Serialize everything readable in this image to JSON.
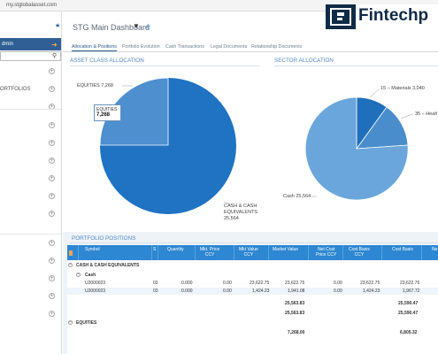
{
  "browser": {
    "url": "my.stglobalasset.com"
  },
  "sidebar": {
    "user_label": "dmin",
    "search_placeholder": "",
    "portfolios_label": "ORTFOLIOS"
  },
  "header": {
    "title": "STG Main Dashboard"
  },
  "logo": {
    "text": "Fintechp"
  },
  "tabs": [
    {
      "label": "Allocation & Positions",
      "active": true
    },
    {
      "label": "Portfolio Evolution"
    },
    {
      "label": "Cash Transactions"
    },
    {
      "label": "Legal Documents"
    },
    {
      "label": "Relationship Documents"
    }
  ],
  "asset_allocation": {
    "title": "ASSET CLASS ALLOCATION",
    "tooltip": {
      "name": "EQUITIES",
      "value": "7,268"
    },
    "labels": {
      "equities": "EQUITIES 7,268",
      "cash_1": "CASH & CASH",
      "cash_2": "EQUIVALENTS",
      "cash_3": "25,564"
    }
  },
  "sector_allocation": {
    "title": "SECTOR ALLOCATION",
    "labels": {
      "materials": "15 – Materials 3,040",
      "health": "35 – Healt",
      "cash": "Cash 25,564"
    }
  },
  "portfolio_positions": {
    "title": "PORTFOLIO POSITIONS",
    "columns": {
      "symbol": "Symbol",
      "s": "S",
      "quantity": "Quantity",
      "mkt_price_1": "Mkt. Price",
      "mkt_price_2": "CCY",
      "mkt_value_1": "Mkt Value",
      "mkt_value_2": "CCY",
      "market_value": "Market Value",
      "net_cost_1": "Net Cost",
      "net_cost_2": "Price CCY",
      "cost_basis_1": "Cost Basis",
      "cost_basis_2": "CCY",
      "cost_basis": "Cost Basis",
      "ne": "Ne"
    },
    "group_cash": "CASH & CASH EQUIVALENTS",
    "subgroup_cash": "Cash",
    "rows": [
      {
        "symbol": "U2000023",
        "s": "03",
        "qty": "0.000",
        "mkt_price": "0.00",
        "mkt_value_ccy": "23,622.75",
        "market_value": "23,622.75",
        "net_cost": "0.00",
        "cost_basis_ccy": "23,622.75",
        "cost_basis": "23,622.75"
      },
      {
        "symbol": "U2000023",
        "s": "03",
        "qty": "0.000",
        "mkt_price": "0.00",
        "mkt_value_ccy": "1,424.23",
        "market_value": "1,941.08",
        "net_cost": "0.00",
        "cost_basis_ccy": "1,424.23",
        "cost_basis": "1,967.72"
      }
    ],
    "subtotal_market_value": "25,563.83",
    "subtotal_cost_basis": "25,590.47",
    "total_market_value": "25,563.83",
    "total_cost_basis": "25,590.47",
    "group_equities": "EQUITIES",
    "equities_market_value": "7,268.00",
    "equities_cost_basis": "6,805.32"
  },
  "colors": {
    "accent": "#2d87d2",
    "pie_cash": "#1f73c2",
    "pie_equities": "#4d8fcf",
    "sector_cash": "#6aa6dc",
    "sector_materials": "#1f6fbd",
    "sector_health": "#4a8dcc"
  }
}
